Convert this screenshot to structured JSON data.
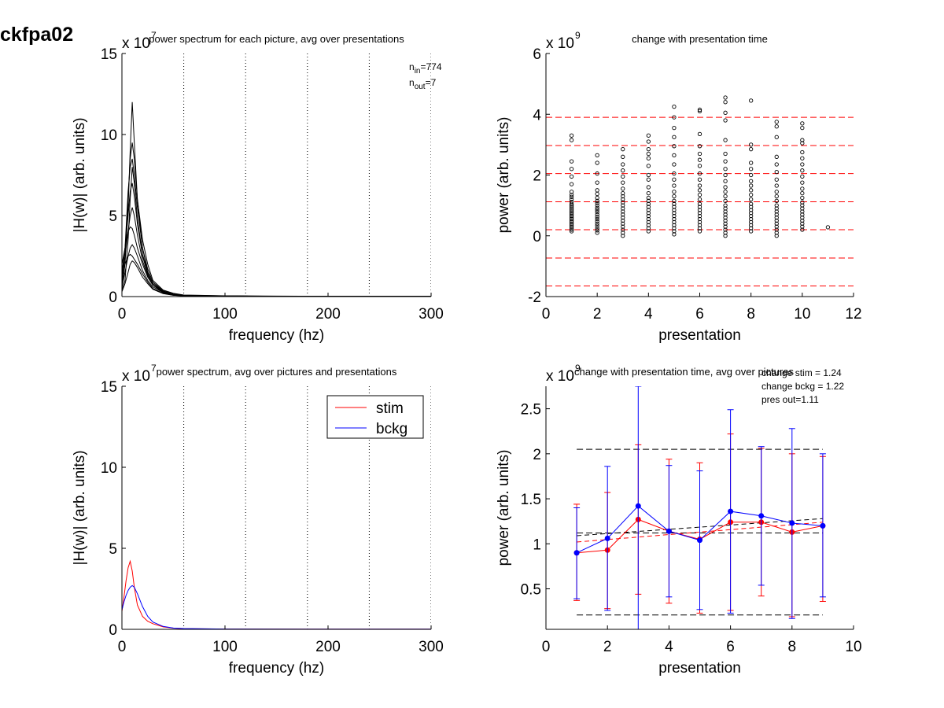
{
  "figure": {
    "id_label": "ckfpa02"
  },
  "chart_data": [
    {
      "type": "line",
      "title": "power spectrum for each picture, avg over presentations",
      "xlabel": "frequency (hz)",
      "ylabel": "|H(w)| (arb. units)",
      "xlim": [
        0,
        300
      ],
      "ylim": [
        0,
        15
      ],
      "xticks": [
        "0",
        "100",
        "200",
        "300"
      ],
      "yticks": [
        "0",
        "5",
        "10",
        "15"
      ],
      "y_multiplier_label": "x 10",
      "y_multiplier_exp": "7",
      "vlines": [
        60,
        120,
        180,
        240,
        300
      ],
      "annotations": [
        {
          "base": "n",
          "sub": "in",
          "rest": "=774"
        },
        {
          "base": "n",
          "sub": "out",
          "rest": "=7"
        }
      ],
      "series": [
        {
          "x": [
            0,
            3,
            6,
            8,
            10,
            12,
            15,
            20,
            25,
            30,
            40,
            50,
            60,
            100,
            150,
            200,
            300
          ],
          "values": [
            0.5,
            2,
            5.5,
            9,
            12,
            9.5,
            6,
            3,
            1.5,
            0.8,
            0.35,
            0.15,
            0.08,
            0.03,
            0.02,
            0.01,
            0.01
          ]
        },
        {
          "x": [
            0,
            3,
            6,
            8,
            10,
            12,
            15,
            20,
            25,
            30,
            40,
            50,
            60,
            100,
            150,
            200,
            300
          ],
          "values": [
            0.8,
            2.5,
            6,
            8.5,
            9.5,
            8.5,
            6,
            3.5,
            2,
            1,
            0.4,
            0.2,
            0.1,
            0.05,
            0.03,
            0.02,
            0.01
          ]
        },
        {
          "x": [
            0,
            3,
            6,
            8,
            10,
            12,
            15,
            20,
            25,
            30,
            40,
            50,
            60,
            100,
            150,
            200,
            300
          ],
          "values": [
            1.2,
            3,
            6.5,
            8,
            8.5,
            7.5,
            5.5,
            3,
            1.7,
            0.9,
            0.35,
            0.15,
            0.08,
            0.04,
            0.02,
            0.01,
            0.01
          ]
        },
        {
          "x": [
            0,
            3,
            6,
            8,
            10,
            12,
            15,
            20,
            25,
            30,
            40,
            50,
            60,
            100,
            150,
            200,
            300
          ],
          "values": [
            1.5,
            3,
            5,
            6.5,
            7,
            6.2,
            4.5,
            2.5,
            1.4,
            0.8,
            0.3,
            0.12,
            0.06,
            0.03,
            0.02,
            0.01,
            0.01
          ]
        },
        {
          "x": [
            0,
            3,
            6,
            8,
            10,
            12,
            15,
            20,
            25,
            30,
            40,
            50,
            60,
            100,
            150,
            200,
            300
          ],
          "values": [
            1,
            2.5,
            4,
            5,
            5.5,
            5,
            3.8,
            2.2,
            1.3,
            0.7,
            0.3,
            0.12,
            0.06,
            0.03,
            0.02,
            0.01,
            0.01
          ]
        },
        {
          "x": [
            0,
            3,
            6,
            8,
            10,
            12,
            15,
            20,
            25,
            30,
            40,
            50,
            60,
            100,
            150,
            200,
            300
          ],
          "values": [
            2,
            3,
            4,
            4.3,
            4.2,
            3.8,
            3,
            2,
            1.2,
            0.7,
            0.25,
            0.1,
            0.05,
            0.03,
            0.02,
            0.01,
            0.01
          ]
        },
        {
          "x": [
            0,
            3,
            6,
            8,
            10,
            12,
            15,
            20,
            25,
            30,
            40,
            50,
            60,
            100,
            150,
            200,
            300
          ],
          "values": [
            0.6,
            1.5,
            2.5,
            3,
            3.2,
            3,
            2.5,
            1.6,
            1,
            0.6,
            0.25,
            0.1,
            0.05,
            0.03,
            0.02,
            0.01,
            0.01
          ]
        },
        {
          "x": [
            0,
            3,
            6,
            8,
            10,
            12,
            15,
            20,
            25,
            30,
            40,
            50,
            60,
            100,
            150,
            200,
            300
          ],
          "values": [
            1.5,
            2,
            2.5,
            2.6,
            2.5,
            2.3,
            2,
            1.4,
            0.9,
            0.5,
            0.2,
            0.08,
            0.05,
            0.03,
            0.02,
            0.01,
            0.01
          ]
        },
        {
          "x": [
            0,
            3,
            6,
            8,
            10,
            12,
            15,
            20,
            25,
            30,
            40,
            50,
            60,
            100,
            150,
            200,
            300
          ],
          "values": [
            0.3,
            0.8,
            1.5,
            2,
            2.2,
            2.1,
            1.8,
            1.2,
            0.8,
            0.45,
            0.18,
            0.08,
            0.04,
            0.02,
            0.01,
            0.01,
            0.01
          ]
        },
        {
          "x": [
            0,
            3,
            6,
            8,
            10,
            12,
            15,
            20,
            25,
            30,
            40,
            50,
            60,
            100,
            150,
            200,
            300
          ],
          "values": [
            0.4,
            1,
            3.5,
            6,
            8,
            7,
            4.8,
            2.6,
            1.5,
            0.8,
            0.3,
            0.12,
            0.06,
            0.03,
            0.02,
            0.01,
            0.01
          ]
        }
      ]
    },
    {
      "type": "scatter",
      "title": "change with presentation time",
      "xlabel": "presentation",
      "ylabel": "power (arb. units)",
      "xlim": [
        0,
        12
      ],
      "ylim": [
        -2,
        6
      ],
      "xticks": [
        "0",
        "2",
        "4",
        "6",
        "8",
        "10",
        "12"
      ],
      "yticks": [
        "-2",
        "0",
        "2",
        "4",
        "6"
      ],
      "y_multiplier_label": "x 10",
      "y_multiplier_exp": "9",
      "hlines": [
        3.9,
        2.97,
        2.05,
        1.12,
        0.2,
        -0.73,
        -1.65
      ],
      "points": [
        {
          "x": 1,
          "y": [
            3.3,
            3.15,
            2.45,
            2.2,
            1.95,
            1.7,
            1.45,
            1.35,
            1.28,
            1.2,
            1.12,
            1.05,
            1.0,
            0.95,
            0.9,
            0.85,
            0.8,
            0.75,
            0.7,
            0.65,
            0.6,
            0.55,
            0.5,
            0.45,
            0.4,
            0.35,
            0.3,
            0.25,
            0.2,
            0.15
          ]
        },
        {
          "x": 2,
          "y": [
            2.65,
            2.4,
            2.05,
            1.75,
            1.5,
            1.38,
            1.25,
            1.15,
            1.08,
            1.0,
            0.92,
            0.85,
            0.78,
            0.7,
            0.62,
            0.55,
            0.48,
            0.4,
            0.33,
            0.25,
            0.18,
            0.1
          ]
        },
        {
          "x": 3,
          "y": [
            2.85,
            2.6,
            2.35,
            2.15,
            1.95,
            1.75,
            1.55,
            1.4,
            1.3,
            1.2,
            1.1,
            1.0,
            0.9,
            0.8,
            0.7,
            0.6,
            0.5,
            0.4,
            0.3,
            0.2,
            0.1,
            0.0
          ]
        },
        {
          "x": 4,
          "y": [
            3.3,
            3.1,
            2.85,
            2.7,
            2.55,
            2.3,
            2.0,
            1.85,
            1.6,
            1.4,
            1.25,
            1.15,
            1.05,
            0.95,
            0.85,
            0.75,
            0.65,
            0.55,
            0.45,
            0.35,
            0.25,
            0.15
          ]
        },
        {
          "x": 5,
          "y": [
            4.25,
            3.9,
            3.55,
            3.25,
            2.95,
            2.65,
            2.35,
            2.05,
            1.85,
            1.65,
            1.45,
            1.3,
            1.15,
            1.05,
            0.95,
            0.85,
            0.75,
            0.65,
            0.55,
            0.45,
            0.35,
            0.25,
            0.15,
            0.05
          ]
        },
        {
          "x": 6,
          "y": [
            4.15,
            4.1,
            3.35,
            2.95,
            2.7,
            2.5,
            2.3,
            2.05,
            1.85,
            1.65,
            1.5,
            1.35,
            1.2,
            1.05,
            0.95,
            0.85,
            0.75,
            0.65,
            0.55,
            0.45,
            0.35,
            0.25,
            0.15
          ]
        },
        {
          "x": 7,
          "y": [
            4.55,
            4.4,
            4.05,
            3.8,
            3.15,
            2.7,
            2.45,
            2.2,
            2.0,
            1.8,
            1.6,
            1.45,
            1.3,
            1.15,
            1.0,
            0.9,
            0.8,
            0.7,
            0.6,
            0.5,
            0.4,
            0.3,
            0.2,
            0.1,
            0.0
          ]
        },
        {
          "x": 8,
          "y": [
            4.45,
            3.0,
            2.85,
            2.4,
            2.2,
            2.0,
            1.8,
            1.65,
            1.5,
            1.35,
            1.2,
            1.05,
            0.95,
            0.85,
            0.75,
            0.65,
            0.55,
            0.45,
            0.35,
            0.25,
            0.15
          ]
        },
        {
          "x": 9,
          "y": [
            3.75,
            3.6,
            3.25,
            2.6,
            2.35,
            2.1,
            1.85,
            1.65,
            1.45,
            1.3,
            1.15,
            1.0,
            0.9,
            0.8,
            0.7,
            0.6,
            0.5,
            0.4,
            0.3,
            0.2,
            0.1,
            0.0
          ]
        },
        {
          "x": 10,
          "y": [
            3.7,
            3.55,
            3.15,
            3.05,
            2.75,
            2.55,
            2.35,
            2.15,
            1.95,
            1.75,
            1.55,
            1.4,
            1.25,
            1.1,
            1.0,
            0.9,
            0.8,
            0.7,
            0.6,
            0.5,
            0.4,
            0.3,
            0.2
          ]
        },
        {
          "x": 11,
          "y": [
            0.28
          ]
        }
      ]
    },
    {
      "type": "line",
      "title": "power spectrum, avg over pictures and presentations",
      "xlabel": "frequency (hz)",
      "ylabel": "|H(w)| (arb. units)",
      "xlim": [
        0,
        300
      ],
      "ylim": [
        0,
        15
      ],
      "xticks": [
        "0",
        "100",
        "200",
        "300"
      ],
      "yticks": [
        "0",
        "5",
        "10",
        "15"
      ],
      "y_multiplier_label": "x 10",
      "y_multiplier_exp": "7",
      "vlines": [
        60,
        120,
        180,
        240,
        300
      ],
      "legend_position": "top-right",
      "series": [
        {
          "name": "stim",
          "color": "#ff0000",
          "x": [
            0,
            2,
            4,
            6,
            8,
            10,
            12,
            15,
            20,
            25,
            30,
            40,
            50,
            60,
            100,
            200,
            300
          ],
          "values": [
            1.1,
            2.0,
            3.0,
            3.8,
            4.2,
            3.6,
            2.6,
            1.5,
            0.8,
            0.5,
            0.35,
            0.15,
            0.07,
            0.04,
            0.02,
            0.01,
            0.01
          ]
        },
        {
          "name": "bckg",
          "color": "#0000ff",
          "x": [
            0,
            2,
            4,
            6,
            8,
            10,
            12,
            15,
            20,
            25,
            30,
            40,
            50,
            60,
            100,
            200,
            300
          ],
          "values": [
            1.2,
            1.7,
            2.1,
            2.4,
            2.6,
            2.7,
            2.6,
            2.2,
            1.4,
            0.8,
            0.45,
            0.18,
            0.08,
            0.05,
            0.02,
            0.01,
            0.01
          ]
        }
      ]
    },
    {
      "type": "line",
      "title": "change with presentation time, avg over pictures",
      "xlabel": "presentation",
      "ylabel": "power (arb. units)",
      "xlim": [
        0,
        10
      ],
      "ylim": [
        0.05,
        2.75
      ],
      "xticks": [
        "0",
        "2",
        "4",
        "6",
        "8",
        "10"
      ],
      "yticks": [
        "0.5",
        "1",
        "1.5",
        "2",
        "2.5"
      ],
      "y_multiplier_label": "x 10",
      "y_multiplier_exp": "9",
      "annotation_lines": [
        "change stim = 1.24",
        "change bckg = 1.22",
        "pres out=1.11"
      ],
      "hlines": [
        2.05,
        1.12,
        0.21
      ],
      "trend_lines": [
        {
          "color": "#000000",
          "x": [
            1,
            9
          ],
          "values": [
            1.09,
            1.28
          ]
        },
        {
          "color": "#ff0000",
          "x": [
            1,
            9
          ],
          "values": [
            1.02,
            1.24
          ]
        }
      ],
      "x": [
        1,
        2,
        3,
        4,
        5,
        6,
        7,
        8,
        9
      ],
      "series": [
        {
          "name": "stim",
          "color": "#ff0000",
          "values": [
            0.9,
            0.93,
            1.27,
            1.14,
            1.05,
            1.24,
            1.24,
            1.13,
            1.2
          ],
          "err_hi": [
            1.44,
            1.57,
            2.1,
            1.94,
            1.9,
            2.22,
            2.06,
            2.0,
            1.97
          ],
          "err_lo": [
            0.37,
            0.28,
            0.44,
            0.34,
            0.23,
            0.26,
            0.42,
            0.19,
            0.36
          ]
        },
        {
          "name": "bckg",
          "color": "#0000ff",
          "values": [
            0.9,
            1.06,
            1.42,
            1.14,
            1.04,
            1.36,
            1.31,
            1.23,
            1.2
          ],
          "err_hi": [
            1.4,
            1.86,
            2.75,
            1.87,
            1.81,
            2.49,
            2.08,
            2.28,
            2.0
          ],
          "err_lo": [
            0.39,
            0.26,
            0.05,
            0.41,
            0.27,
            0.23,
            0.54,
            0.17,
            0.41
          ]
        }
      ]
    }
  ]
}
